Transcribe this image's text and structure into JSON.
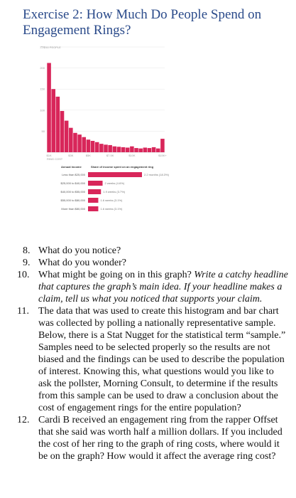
{
  "title": "Exercise 2: How Much Do People Spend on Engagement Rings?",
  "colors": {
    "accent": "#d8265a",
    "title": "#2a4a8a",
    "muted": "#9a9a9a"
  },
  "chart_data": [
    {
      "type": "bar",
      "title": "",
      "ylabel": "250 PEOPLE",
      "yticks": [
        "250",
        "200",
        "150",
        "100",
        "50"
      ],
      "ytick_values": [
        250,
        200,
        150,
        100,
        50
      ],
      "ylim": [
        0,
        250
      ],
      "xlabel": "RING COST",
      "xticks": [
        "$1K",
        "$3K",
        "$5K",
        "$7.5K",
        "$10K",
        "$15K+"
      ],
      "xtick_bins": [
        0,
        5,
        9,
        14,
        19,
        26
      ],
      "values": [
        212,
        150,
        132,
        98,
        75,
        58,
        46,
        42,
        36,
        30,
        27,
        24,
        20,
        18,
        17,
        14,
        13,
        12,
        11,
        14,
        10,
        9,
        11,
        10,
        12,
        9,
        32
      ],
      "grid": true
    },
    {
      "type": "bar",
      "orientation": "horizontal",
      "header_income": "Annual income",
      "header_share": "Share of income spent on an engagement ring",
      "categories": [
        "Less than $25,000",
        "$25,000 to $40,000",
        "$40,000 to $55,000",
        "$55,000 to $80,000",
        "More than $80,000"
      ],
      "values": [
        2.2,
        2.0,
        1.9,
        1.6,
        1.6
      ],
      "labels": [
        "2.2 months (18.3%)",
        "2 weeks (4.6%)",
        "1.9 weeks (3.7%)",
        "1.6 weeks (3.1%)",
        "1.6 weeks (3.1%)"
      ],
      "bar_lengths_relative": [
        1.0,
        0.27,
        0.24,
        0.19,
        0.19
      ]
    }
  ],
  "questions": [
    {
      "num": "8.",
      "text": "What do you notice?"
    },
    {
      "num": "9.",
      "text": "What do you wonder?"
    },
    {
      "num": "10.",
      "text": "What might be going on in this graph? ",
      "italic": "Write a catchy headline that captures the graph’s main idea. If your headline makes a claim, tell us what you noticed that supports your claim."
    },
    {
      "num": "11.",
      "text": "The data that was used to create this histogram and bar chart was collected by polling a nationally representative sample. Below, there is a Stat Nugget for the statistical term “sample.” Samples need to be selected properly so the results are not biased and the findings can be used to describe the population of interest. Knowing this, what questions would you like to ask the pollster, Morning Consult, to determine if the results from this sample can be used to draw a conclusion about the cost of engagement rings for the entire population?"
    },
    {
      "num": "12.",
      "text": "Cardi B received an engagement ring from the rapper Offset that she said was worth half a million dollars. If you included the cost of her ring to the graph of ring costs, where would it be on the graph? How would it affect the average ring cost?"
    }
  ]
}
